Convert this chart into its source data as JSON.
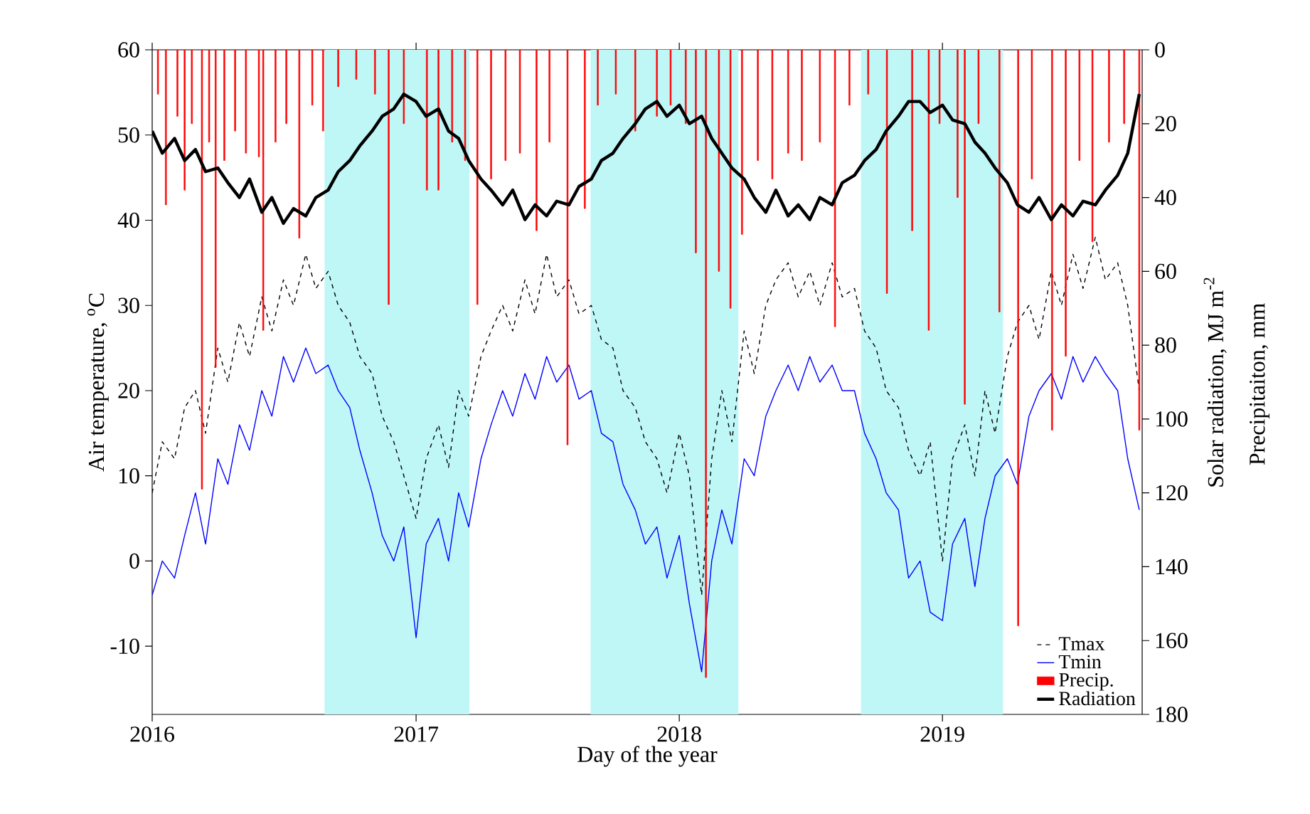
{
  "chart_data": {
    "type": "line",
    "xlabel": "Day of the year",
    "ylabel": "Air temperature, $^{o}$C",
    "y2label": "Solar radiation, MJ m$^{-2}$",
    "annotations": [
      "Precipitaiton, mm"
    ],
    "xlim": [
      "2016-01-01",
      "2019-10-05"
    ],
    "xticks": [
      "2016",
      "2017",
      "2018",
      "2019"
    ],
    "ylim": [
      -18,
      60
    ],
    "yticks": [
      -10,
      0,
      10,
      20,
      30,
      40,
      50,
      60
    ],
    "y2lim": [
      180,
      0
    ],
    "y2ticks": [
      0,
      20,
      40,
      60,
      80,
      100,
      120,
      140,
      160,
      180
    ],
    "legend": "bottom right",
    "bands": [
      {
        "axis": "x",
        "from": "2016-08-27",
        "to": "2017-03-16",
        "color": "#bff7f7"
      },
      {
        "axis": "x",
        "from": "2017-08-31",
        "to": "2018-03-24",
        "color": "#bff7f7"
      },
      {
        "axis": "x",
        "from": "2018-09-10",
        "to": "2019-03-26",
        "color": "#bff7f7"
      }
    ],
    "x": [
      "2016-01-01",
      "2016-01-15",
      "2016-02-01",
      "2016-02-15",
      "2016-03-01",
      "2016-03-15",
      "2016-04-01",
      "2016-04-15",
      "2016-05-01",
      "2016-05-15",
      "2016-06-01",
      "2016-06-15",
      "2016-07-01",
      "2016-07-15",
      "2016-08-01",
      "2016-08-15",
      "2016-09-01",
      "2016-09-15",
      "2016-10-01",
      "2016-10-15",
      "2016-11-01",
      "2016-11-15",
      "2016-12-01",
      "2016-12-15",
      "2017-01-01",
      "2017-01-15",
      "2017-02-01",
      "2017-02-15",
      "2017-03-01",
      "2017-03-15",
      "2017-04-01",
      "2017-04-15",
      "2017-05-01",
      "2017-05-15",
      "2017-06-01",
      "2017-06-15",
      "2017-07-01",
      "2017-07-15",
      "2017-08-01",
      "2017-08-15",
      "2017-09-01",
      "2017-09-15",
      "2017-10-01",
      "2017-10-15",
      "2017-11-01",
      "2017-11-15",
      "2017-12-01",
      "2017-12-15",
      "2018-01-01",
      "2018-01-15",
      "2018-02-01",
      "2018-02-15",
      "2018-03-01",
      "2018-03-15",
      "2018-04-01",
      "2018-04-15",
      "2018-05-01",
      "2018-05-15",
      "2018-06-01",
      "2018-06-15",
      "2018-07-01",
      "2018-07-15",
      "2018-08-01",
      "2018-08-15",
      "2018-09-01",
      "2018-09-15",
      "2018-10-01",
      "2018-10-15",
      "2018-11-01",
      "2018-11-15",
      "2018-12-01",
      "2018-12-15",
      "2019-01-01",
      "2019-01-15",
      "2019-02-01",
      "2019-02-15",
      "2019-03-01",
      "2019-03-15",
      "2019-04-01",
      "2019-04-15",
      "2019-05-01",
      "2019-05-15",
      "2019-06-01",
      "2019-06-15",
      "2019-07-01",
      "2019-07-15",
      "2019-08-01",
      "2019-08-15",
      "2019-09-01",
      "2019-09-15",
      "2019-10-01"
    ],
    "series": [
      {
        "name": "Tmax",
        "color": "#000000",
        "line_style": "dashed",
        "values": [
          8,
          14,
          12,
          18,
          20,
          15,
          25,
          21,
          28,
          24,
          31,
          27,
          33,
          30,
          36,
          32,
          34,
          30,
          28,
          24,
          22,
          17,
          14,
          10,
          5,
          12,
          16,
          11,
          20,
          17,
          24,
          27,
          30,
          27,
          33,
          29,
          36,
          31,
          33,
          29,
          30,
          26,
          25,
          20,
          18,
          14,
          12,
          8,
          15,
          10,
          -4,
          12,
          20,
          14,
          27,
          22,
          30,
          33,
          35,
          31,
          34,
          30,
          35,
          31,
          32,
          27,
          25,
          20,
          18,
          13,
          10,
          14,
          0,
          12,
          16,
          10,
          20,
          15,
          24,
          28,
          30,
          26,
          34,
          30,
          36,
          32,
          38,
          33,
          35,
          30,
          20
        ]
      },
      {
        "name": "Tmin",
        "color": "#0000ff",
        "line_style": "solid",
        "values": [
          -4,
          0,
          -2,
          3,
          8,
          2,
          12,
          9,
          16,
          13,
          20,
          17,
          24,
          21,
          25,
          22,
          23,
          20,
          18,
          13,
          8,
          3,
          0,
          4,
          -9,
          2,
          5,
          0,
          8,
          4,
          12,
          16,
          20,
          17,
          22,
          19,
          24,
          21,
          23,
          19,
          20,
          15,
          14,
          9,
          6,
          2,
          4,
          -2,
          3,
          -5,
          -13,
          0,
          6,
          2,
          12,
          10,
          17,
          20,
          23,
          20,
          24,
          21,
          23,
          20,
          20,
          15,
          12,
          8,
          6,
          -2,
          0,
          -6,
          -7,
          2,
          5,
          -3,
          5,
          10,
          12,
          9,
          17,
          20,
          22,
          19,
          24,
          21,
          24,
          22,
          20,
          12,
          6
        ]
      },
      {
        "name": "Precip.",
        "type": "bar",
        "axis": "y2",
        "color": "#ff0000",
        "x": [
          "2016-01-09",
          "2016-01-20",
          "2016-02-05",
          "2016-02-15",
          "2016-02-25",
          "2016-03-10",
          "2016-03-20",
          "2016-03-29",
          "2016-04-10",
          "2016-04-25",
          "2016-05-10",
          "2016-05-28",
          "2016-06-03",
          "2016-06-20",
          "2016-07-05",
          "2016-07-23",
          "2016-08-10",
          "2016-08-25",
          "2016-09-15",
          "2016-10-10",
          "2016-11-05",
          "2016-11-24",
          "2016-12-15",
          "2017-01-16",
          "2017-02-01",
          "2017-02-20",
          "2017-03-10",
          "2017-03-27",
          "2017-04-15",
          "2017-05-05",
          "2017-05-25",
          "2017-06-17",
          "2017-07-05",
          "2017-07-30",
          "2017-08-23",
          "2017-09-10",
          "2017-10-05",
          "2017-11-01",
          "2017-12-01",
          "2017-12-20",
          "2018-01-10",
          "2018-01-24",
          "2018-02-07",
          "2018-02-25",
          "2018-03-13",
          "2018-03-29",
          "2018-04-20",
          "2018-05-10",
          "2018-06-01",
          "2018-06-20",
          "2018-07-15",
          "2018-08-05",
          "2018-08-25",
          "2018-09-20",
          "2018-10-16",
          "2018-11-20",
          "2018-12-13",
          "2018-12-28",
          "2019-01-22",
          "2019-02-01",
          "2019-02-20",
          "2019-03-21",
          "2019-04-16",
          "2019-05-05",
          "2019-06-02",
          "2019-06-21",
          "2019-07-10",
          "2019-07-28",
          "2019-08-20",
          "2019-09-10",
          "2019-10-01"
        ],
        "values": [
          12,
          42,
          18,
          38,
          20,
          119,
          25,
          86,
          30,
          22,
          28,
          29,
          76,
          25,
          20,
          51,
          15,
          22,
          10,
          8,
          12,
          69,
          20,
          38,
          38,
          25,
          30,
          69,
          35,
          30,
          28,
          49,
          25,
          107,
          43,
          15,
          12,
          22,
          18,
          15,
          20,
          55,
          170,
          60,
          70,
          50,
          30,
          35,
          28,
          30,
          25,
          75,
          15,
          12,
          66,
          49,
          76,
          20,
          40,
          96,
          20,
          71,
          156,
          35,
          103,
          83,
          30,
          52,
          25,
          20,
          103
        ]
      },
      {
        "name": "Radiation",
        "axis": "y2",
        "color": "#000000",
        "line_style": "solid",
        "values": [
          22,
          28,
          24,
          30,
          27,
          33,
          32,
          36,
          40,
          35,
          44,
          40,
          47,
          43,
          45,
          40,
          38,
          33,
          30,
          26,
          22,
          18,
          16,
          12,
          14,
          18,
          16,
          22,
          24,
          30,
          35,
          38,
          42,
          38,
          46,
          42,
          45,
          41,
          42,
          37,
          35,
          30,
          28,
          24,
          20,
          16,
          14,
          18,
          15,
          20,
          18,
          24,
          28,
          32,
          35,
          40,
          44,
          38,
          45,
          42,
          46,
          40,
          42,
          36,
          34,
          30,
          27,
          22,
          18,
          14,
          14,
          17,
          15,
          19,
          20,
          25,
          28,
          32,
          36,
          42,
          44,
          40,
          46,
          42,
          45,
          41,
          42,
          38,
          34,
          28,
          12
        ]
      }
    ]
  }
}
